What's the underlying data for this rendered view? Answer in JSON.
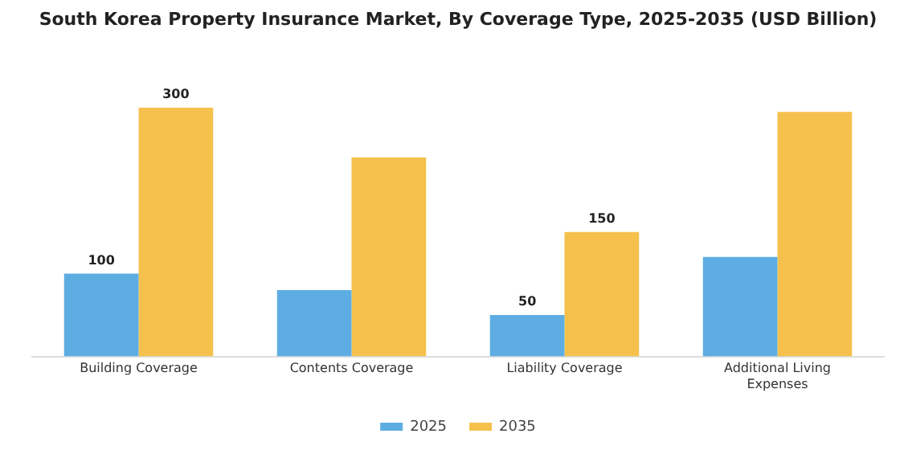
{
  "chart_data": {
    "type": "bar",
    "title": "South Korea Property Insurance Market, By Coverage Type, 2025-2035 (USD Billion)",
    "categories": [
      "Building Coverage",
      "Contents Coverage",
      "Liability Coverage",
      "Additional Living Expenses"
    ],
    "series": [
      {
        "name": "2025",
        "color": "#5dade2",
        "values": [
          100,
          80,
          50,
          120
        ],
        "value_labels": [
          "100",
          null,
          "50",
          null
        ]
      },
      {
        "name": "2035",
        "color": "#f5c14c",
        "values": [
          300,
          240,
          150,
          295
        ],
        "value_labels": [
          "300",
          null,
          "150",
          null
        ]
      }
    ],
    "grid": false,
    "legend": "bottom"
  }
}
